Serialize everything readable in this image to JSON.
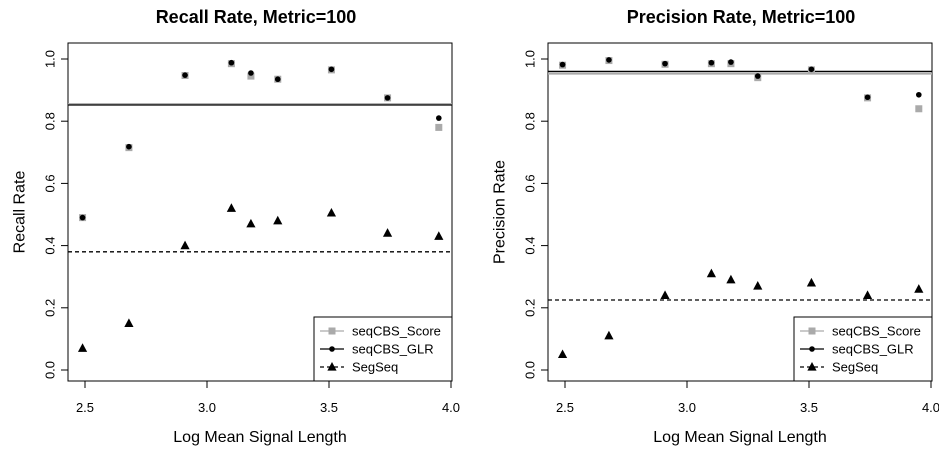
{
  "chart_data": [
    {
      "type": "scatter",
      "title": "Recall Rate, Metric=100",
      "xlabel": "Log Mean Signal Length",
      "ylabel": "Recall Rate",
      "xlim": [
        2.45,
        4.0
      ],
      "ylim": [
        0.0,
        1.0
      ],
      "xticks": [
        "2.5",
        "3.0",
        "3.5",
        "4.0"
      ],
      "yticks": [
        "0.0",
        "0.2",
        "0.4",
        "0.6",
        "0.8",
        "1.0"
      ],
      "legend_position": "bottom-right",
      "series": [
        {
          "name": "seqCBS_Score",
          "color": "#aaaaaa",
          "marker": "square",
          "x": [
            2.49,
            2.68,
            2.91,
            3.1,
            3.18,
            3.29,
            3.51,
            3.74,
            3.95
          ],
          "y": [
            0.49,
            0.715,
            0.947,
            0.985,
            0.945,
            0.935,
            0.965,
            0.875,
            0.78
          ],
          "reference_line": 0.855
        },
        {
          "name": "seqCBS_GLR",
          "color": "#000000",
          "marker": "circle",
          "x": [
            2.49,
            2.68,
            2.91,
            3.1,
            3.18,
            3.29,
            3.51,
            3.74,
            3.95
          ],
          "y": [
            0.49,
            0.718,
            0.948,
            0.988,
            0.955,
            0.935,
            0.967,
            0.875,
            0.81
          ],
          "reference_line": 0.852
        },
        {
          "name": "SegSeq",
          "color": "#000000",
          "marker": "triangle",
          "x": [
            2.49,
            2.68,
            2.91,
            3.1,
            3.18,
            3.29,
            3.51,
            3.74,
            3.95
          ],
          "y": [
            0.07,
            0.15,
            0.4,
            0.52,
            0.47,
            0.48,
            0.505,
            0.44,
            0.43
          ],
          "reference_line": 0.38
        }
      ]
    },
    {
      "type": "scatter",
      "title": "Precision Rate, Metric=100",
      "xlabel": "Log Mean Signal Length",
      "ylabel": "Precision Rate",
      "xlim": [
        2.45,
        4.0
      ],
      "ylim": [
        0.0,
        1.0
      ],
      "xticks": [
        "2.5",
        "3.0",
        "3.5",
        "4.0"
      ],
      "yticks": [
        "0.0",
        "0.2",
        "0.4",
        "0.6",
        "0.8",
        "1.0"
      ],
      "legend_position": "bottom-right",
      "series": [
        {
          "name": "seqCBS_Score",
          "color": "#aaaaaa",
          "marker": "square",
          "x": [
            2.49,
            2.68,
            2.91,
            3.1,
            3.18,
            3.29,
            3.51,
            3.74,
            3.95
          ],
          "y": [
            0.98,
            0.995,
            0.983,
            0.985,
            0.985,
            0.94,
            0.965,
            0.875,
            0.84
          ],
          "reference_line": 0.953
        },
        {
          "name": "seqCBS_GLR",
          "color": "#000000",
          "marker": "circle",
          "x": [
            2.49,
            2.68,
            2.91,
            3.1,
            3.18,
            3.29,
            3.51,
            3.74,
            3.95
          ],
          "y": [
            0.982,
            0.997,
            0.985,
            0.988,
            0.99,
            0.945,
            0.967,
            0.877,
            0.885
          ],
          "reference_line": 0.96
        },
        {
          "name": "SegSeq",
          "color": "#000000",
          "marker": "triangle",
          "x": [
            2.49,
            2.68,
            2.91,
            3.1,
            3.18,
            3.29,
            3.51,
            3.74,
            3.95
          ],
          "y": [
            0.05,
            0.11,
            0.24,
            0.31,
            0.29,
            0.27,
            0.28,
            0.24,
            0.26
          ],
          "reference_line": 0.225
        }
      ]
    }
  ]
}
